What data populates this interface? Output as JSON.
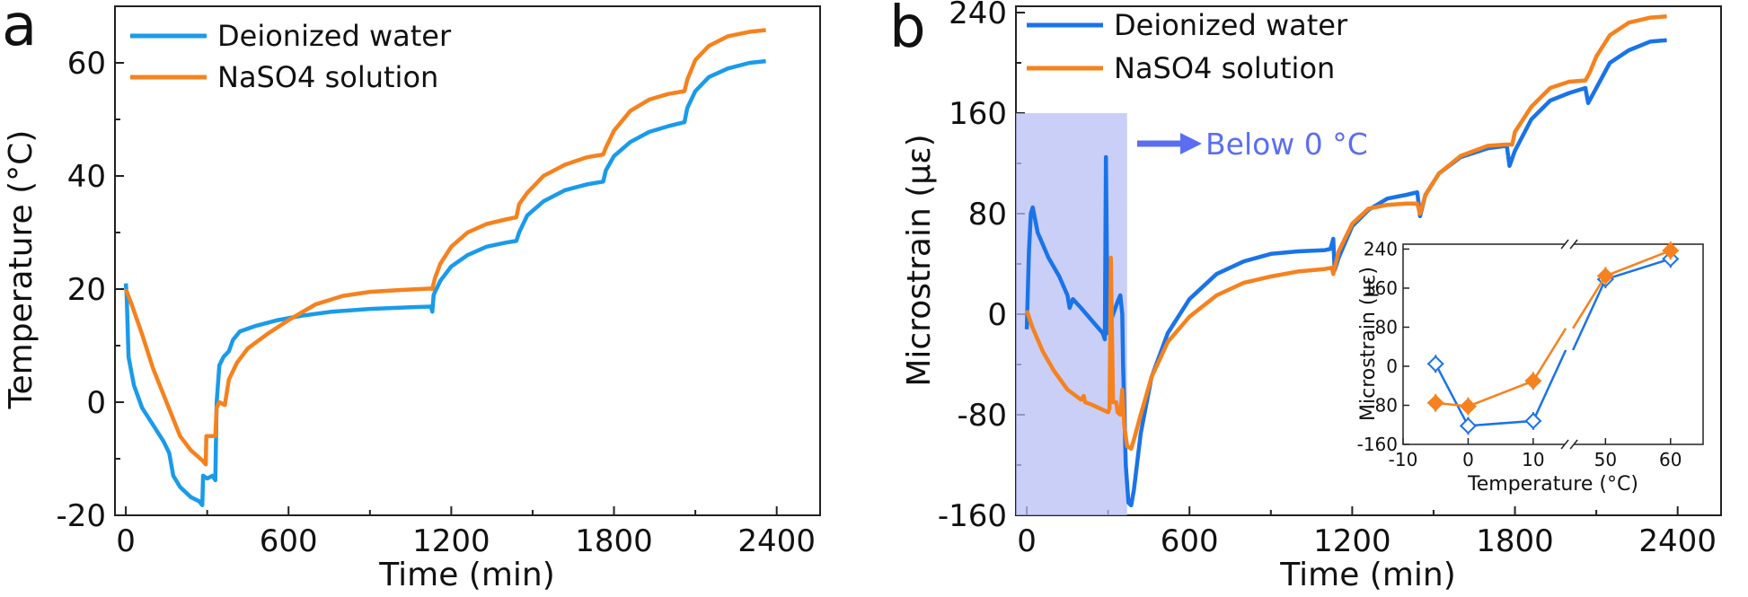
{
  "figure": {
    "width": 1946,
    "height": 665
  },
  "chart_data": [
    {
      "panel_label": "a",
      "type": "line",
      "xlabel": "Time (min)",
      "ylabel": "Temperature (°C)",
      "xlim": [
        -40,
        2560
      ],
      "ylim": [
        -20,
        70
      ],
      "xticks": [
        0,
        600,
        1200,
        1800,
        2400
      ],
      "xtick_labels": [
        "0",
        "600",
        "1200",
        "1800",
        "2400"
      ],
      "yticks": [
        -20,
        0,
        20,
        40,
        60
      ],
      "ytick_labels": [
        "-20",
        "0",
        "20",
        "40",
        "60"
      ],
      "grid": false,
      "legend_placement": "top-left",
      "series": [
        {
          "name": "Deionized water",
          "color": "#1a9bea",
          "points": [
            [
              0,
              21
            ],
            [
              3,
              19
            ],
            [
              10,
              8
            ],
            [
              30,
              3
            ],
            [
              60,
              -1
            ],
            [
              100,
              -4
            ],
            [
              140,
              -7
            ],
            [
              160,
              -9
            ],
            [
              175,
              -13
            ],
            [
              200,
              -15
            ],
            [
              240,
              -16.8
            ],
            [
              270,
              -17.5
            ],
            [
              282,
              -18.2
            ],
            [
              285,
              -13
            ],
            [
              300,
              -13.5
            ],
            [
              320,
              -13
            ],
            [
              330,
              -13.8
            ],
            [
              335,
              0
            ],
            [
              345,
              6.5
            ],
            [
              360,
              8
            ],
            [
              380,
              9
            ],
            [
              395,
              11
            ],
            [
              420,
              12.5
            ],
            [
              480,
              13.5
            ],
            [
              560,
              14.5
            ],
            [
              650,
              15.3
            ],
            [
              760,
              16
            ],
            [
              900,
              16.5
            ],
            [
              1050,
              16.8
            ],
            [
              1125,
              16.9
            ],
            [
              1130,
              16
            ],
            [
              1135,
              19
            ],
            [
              1160,
              21.5
            ],
            [
              1200,
              24
            ],
            [
              1260,
              26
            ],
            [
              1330,
              27.5
            ],
            [
              1400,
              28.2
            ],
            [
              1440,
              28.5
            ],
            [
              1450,
              30
            ],
            [
              1480,
              33
            ],
            [
              1540,
              35.5
            ],
            [
              1620,
              37.5
            ],
            [
              1700,
              38.5
            ],
            [
              1760,
              39
            ],
            [
              1770,
              41
            ],
            [
              1800,
              43.5
            ],
            [
              1860,
              46
            ],
            [
              1930,
              47.8
            ],
            [
              2000,
              48.8
            ],
            [
              2060,
              49.5
            ],
            [
              2070,
              52
            ],
            [
              2100,
              55
            ],
            [
              2150,
              57.5
            ],
            [
              2220,
              59
            ],
            [
              2300,
              60
            ],
            [
              2360,
              60.3
            ]
          ]
        },
        {
          "name": "NaSO4 solution",
          "color": "#f5821f",
          "points": [
            [
              0,
              20
            ],
            [
              20,
              17.5
            ],
            [
              60,
              12
            ],
            [
              100,
              6
            ],
            [
              150,
              0
            ],
            [
              200,
              -6
            ],
            [
              240,
              -8.5
            ],
            [
              280,
              -10.2
            ],
            [
              295,
              -11
            ],
            [
              297,
              -6
            ],
            [
              310,
              -6
            ],
            [
              330,
              -6
            ],
            [
              335,
              -1
            ],
            [
              345,
              0
            ],
            [
              365,
              -0.5
            ],
            [
              380,
              4
            ],
            [
              410,
              7
            ],
            [
              450,
              9.5
            ],
            [
              520,
              12
            ],
            [
              600,
              14.5
            ],
            [
              700,
              17.3
            ],
            [
              800,
              18.8
            ],
            [
              900,
              19.5
            ],
            [
              1000,
              19.8
            ],
            [
              1125,
              20.1
            ],
            [
              1130,
              20
            ],
            [
              1140,
              22
            ],
            [
              1160,
              24.5
            ],
            [
              1200,
              27.5
            ],
            [
              1260,
              30
            ],
            [
              1330,
              31.5
            ],
            [
              1400,
              32.3
            ],
            [
              1440,
              32.7
            ],
            [
              1450,
              35
            ],
            [
              1480,
              37
            ],
            [
              1540,
              40
            ],
            [
              1620,
              42
            ],
            [
              1700,
              43.3
            ],
            [
              1760,
              43.8
            ],
            [
              1770,
              45
            ],
            [
              1800,
              48
            ],
            [
              1860,
              51.5
            ],
            [
              1930,
              53.5
            ],
            [
              2000,
              54.5
            ],
            [
              2060,
              55
            ],
            [
              2070,
              57
            ],
            [
              2100,
              60.5
            ],
            [
              2150,
              63
            ],
            [
              2220,
              64.7
            ],
            [
              2300,
              65.5
            ],
            [
              2360,
              65.8
            ]
          ]
        }
      ]
    },
    {
      "panel_label": "b",
      "type": "line",
      "xlabel": "Time (min)",
      "ylabel": "Microstrain (με)",
      "xlim": [
        -40,
        2560
      ],
      "ylim": [
        -160,
        245
      ],
      "xticks": [
        0,
        600,
        1200,
        1800,
        2400
      ],
      "xtick_labels": [
        "0",
        "600",
        "1200",
        "1800",
        "2400"
      ],
      "yticks": [
        -160,
        -80,
        0,
        80,
        160,
        240
      ],
      "ytick_labels": [
        "-160",
        "-80",
        "0",
        "80",
        "160",
        "240"
      ],
      "grid": false,
      "legend_placement": "top-left",
      "shaded_region": {
        "x": [
          -40,
          370
        ],
        "y": [
          -160,
          160
        ],
        "color": "#b8bff5"
      },
      "annotation": {
        "text": "Below 0 °C",
        "color": "#5b6ef2"
      },
      "series": [
        {
          "name": "Deionized water",
          "color": "#1a73e8",
          "points": [
            [
              0,
              -12
            ],
            [
              8,
              50
            ],
            [
              15,
              80
            ],
            [
              22,
              85
            ],
            [
              40,
              65
            ],
            [
              80,
              45
            ],
            [
              120,
              30
            ],
            [
              150,
              15
            ],
            [
              158,
              5
            ],
            [
              170,
              12
            ],
            [
              200,
              5
            ],
            [
              240,
              -5
            ],
            [
              280,
              -15
            ],
            [
              288,
              -20
            ],
            [
              292,
              125
            ],
            [
              298,
              -15
            ],
            [
              310,
              -5
            ],
            [
              335,
              10
            ],
            [
              345,
              15
            ],
            [
              352,
              0
            ],
            [
              355,
              -40
            ],
            [
              360,
              -80
            ],
            [
              365,
              -120
            ],
            [
              375,
              -150
            ],
            [
              385,
              -152
            ],
            [
              395,
              -140
            ],
            [
              420,
              -95
            ],
            [
              460,
              -50
            ],
            [
              520,
              -15
            ],
            [
              600,
              12
            ],
            [
              700,
              32
            ],
            [
              800,
              42
            ],
            [
              900,
              48
            ],
            [
              1000,
              50
            ],
            [
              1100,
              51
            ],
            [
              1120,
              52
            ],
            [
              1130,
              60
            ],
            [
              1135,
              35
            ],
            [
              1150,
              45
            ],
            [
              1200,
              70
            ],
            [
              1260,
              83
            ],
            [
              1330,
              92
            ],
            [
              1400,
              95
            ],
            [
              1440,
              97
            ],
            [
              1450,
              78
            ],
            [
              1470,
              95
            ],
            [
              1520,
              112
            ],
            [
              1600,
              125
            ],
            [
              1700,
              132
            ],
            [
              1770,
              134
            ],
            [
              1780,
              118
            ],
            [
              1800,
              130
            ],
            [
              1860,
              155
            ],
            [
              1930,
              170
            ],
            [
              2000,
              176
            ],
            [
              2060,
              180
            ],
            [
              2070,
              168
            ],
            [
              2100,
              180
            ],
            [
              2150,
              200
            ],
            [
              2220,
              210
            ],
            [
              2300,
              217
            ],
            [
              2360,
              218
            ]
          ]
        },
        {
          "name": "NaSO4 solution",
          "color": "#f5821f",
          "points": [
            [
              0,
              3
            ],
            [
              20,
              -10
            ],
            [
              60,
              -30
            ],
            [
              100,
              -45
            ],
            [
              150,
              -60
            ],
            [
              200,
              -68
            ],
            [
              210,
              -65
            ],
            [
              215,
              -70
            ],
            [
              240,
              -72
            ],
            [
              280,
              -76
            ],
            [
              300,
              -78
            ],
            [
              305,
              -75
            ],
            [
              310,
              45
            ],
            [
              318,
              -70
            ],
            [
              330,
              -70
            ],
            [
              335,
              -78
            ],
            [
              345,
              -80
            ],
            [
              352,
              -60
            ],
            [
              360,
              -90
            ],
            [
              370,
              -105
            ],
            [
              385,
              -107
            ],
            [
              395,
              -100
            ],
            [
              420,
              -80
            ],
            [
              460,
              -50
            ],
            [
              520,
              -22
            ],
            [
              600,
              -2
            ],
            [
              700,
              15
            ],
            [
              800,
              25
            ],
            [
              900,
              30
            ],
            [
              1000,
              34
            ],
            [
              1100,
              36
            ],
            [
              1125,
              37
            ],
            [
              1130,
              32
            ],
            [
              1150,
              50
            ],
            [
              1200,
              72
            ],
            [
              1260,
              84
            ],
            [
              1330,
              87
            ],
            [
              1400,
              88
            ],
            [
              1440,
              88
            ],
            [
              1450,
              80
            ],
            [
              1470,
              95
            ],
            [
              1520,
              112
            ],
            [
              1600,
              126
            ],
            [
              1700,
              134
            ],
            [
              1770,
              135
            ],
            [
              1790,
              135
            ],
            [
              1800,
              145
            ],
            [
              1860,
              165
            ],
            [
              1930,
              180
            ],
            [
              2000,
              185
            ],
            [
              2060,
              186
            ],
            [
              2075,
              192
            ],
            [
              2100,
              205
            ],
            [
              2150,
              222
            ],
            [
              2220,
              232
            ],
            [
              2300,
              236
            ],
            [
              2360,
              237
            ]
          ]
        }
      ],
      "inset": {
        "type": "scatter",
        "xlabel": "Temperature (°C)",
        "ylabel": "Microstrain (με)",
        "xlim": [
          -10,
          65
        ],
        "ylim": [
          -160,
          250
        ],
        "x_axis_break": [
          15,
          45
        ],
        "xticks": [
          -10,
          0,
          10,
          50,
          60
        ],
        "xtick_labels": [
          "-10",
          "0",
          "10",
          "50",
          "60"
        ],
        "yticks": [
          -160,
          -80,
          0,
          80,
          160,
          240
        ],
        "ytick_labels": [
          "-160",
          "-80",
          "0",
          "80",
          "160",
          "240"
        ],
        "series": [
          {
            "color": "#1a73e8",
            "marker": "open-diamond",
            "points": [
              {
                "x": -5,
                "y": 5
              },
              {
                "x": 0,
                "y": -122
              },
              {
                "x": 10,
                "y": -112
              },
              {
                "x": 50,
                "y": 178
              },
              {
                "x": 60,
                "y": 220
              }
            ]
          },
          {
            "color": "#f5821f",
            "marker": "filled-diamond",
            "points": [
              {
                "x": -5,
                "y": -75
              },
              {
                "x": 0,
                "y": -82
              },
              {
                "x": 10,
                "y": -30
              },
              {
                "x": 50,
                "y": 185
              },
              {
                "x": 60,
                "y": 237
              }
            ]
          }
        ]
      }
    }
  ]
}
